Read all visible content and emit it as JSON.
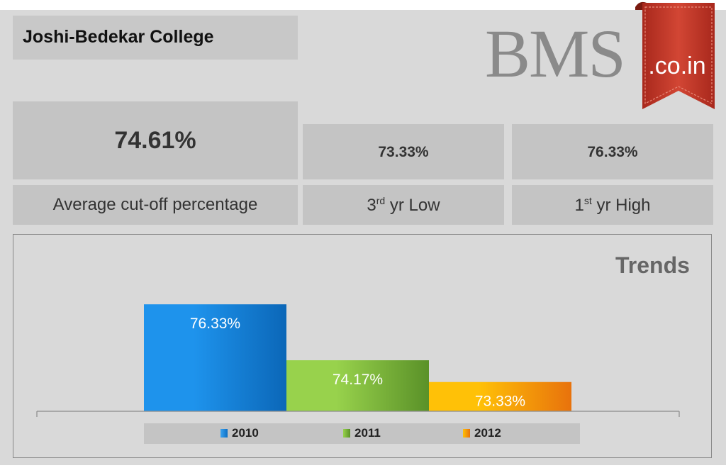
{
  "header": {
    "title": "Joshi-Bedekar College"
  },
  "logo": {
    "main_text": "BMS",
    "ribbon_text": ".co.in",
    "ribbon_color": "#c0392b"
  },
  "stats": {
    "average": {
      "value": "74.61%",
      "label": "Average cut-off percentage"
    },
    "low": {
      "value": "73.33%",
      "label_base": "3",
      "label_sup": "rd",
      "label_rest": " yr Low"
    },
    "high": {
      "value": "76.33%",
      "label_base": "1",
      "label_sup": "st",
      "label_rest": " yr High"
    }
  },
  "chart_data": {
    "type": "bar",
    "title": "Trends",
    "categories": [
      "2010",
      "2011",
      "2012"
    ],
    "values": [
      76.33,
      74.17,
      73.33
    ],
    "data_labels": [
      "76.33%",
      "74.17%",
      "73.33%"
    ],
    "colors": [
      "#1f8fe0",
      "#7cb83a",
      "#f5a30a"
    ],
    "ylim": [
      72.2,
      76.8
    ],
    "grid": false,
    "legend_position": "bottom"
  }
}
